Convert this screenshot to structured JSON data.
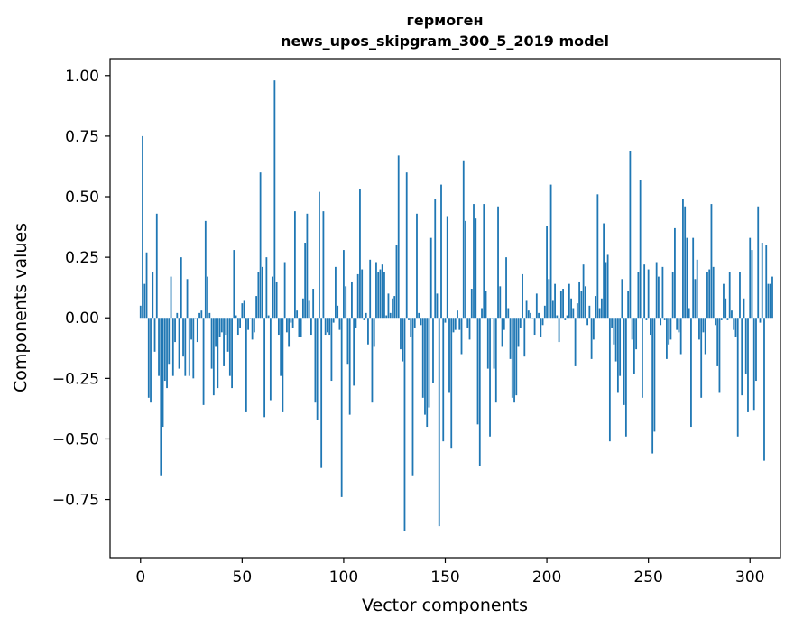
{
  "chart_data": {
    "type": "bar",
    "title": "гермоген",
    "subtitle": "news_upos_skipgram_300_5_2019 model",
    "xlabel": "Vector components",
    "ylabel": "Components values",
    "xlim": [
      -15,
      315
    ],
    "ylim": [
      -0.99,
      1.07
    ],
    "xticks": [
      0,
      50,
      100,
      150,
      200,
      250,
      300
    ],
    "yticks": [
      -0.75,
      -0.5,
      -0.25,
      0.0,
      0.25,
      0.5,
      0.75,
      1.0
    ],
    "ytick_labels": [
      "−0.75",
      "−0.50",
      "−0.25",
      "0.00",
      "0.25",
      "0.50",
      "0.75",
      "1.00"
    ],
    "grid": false,
    "color": "#1f77b4",
    "values": [
      0.05,
      0.75,
      0.14,
      0.27,
      -0.33,
      -0.35,
      0.19,
      -0.14,
      0.43,
      -0.24,
      -0.65,
      -0.45,
      -0.26,
      -0.29,
      -0.19,
      0.17,
      -0.24,
      -0.1,
      0.02,
      -0.21,
      0.25,
      -0.16,
      -0.24,
      0.16,
      -0.24,
      -0.09,
      -0.25,
      0.0,
      -0.1,
      0.02,
      0.03,
      -0.36,
      0.4,
      0.17,
      0.02,
      -0.21,
      -0.32,
      -0.12,
      -0.29,
      -0.08,
      -0.06,
      -0.2,
      -0.07,
      -0.14,
      -0.24,
      -0.29,
      0.28,
      0.01,
      -0.07,
      -0.04,
      0.06,
      0.07,
      -0.39,
      -0.05,
      0.0,
      -0.09,
      -0.06,
      0.09,
      0.19,
      0.6,
      0.21,
      -0.41,
      0.25,
      0.01,
      -0.34,
      0.17,
      0.98,
      0.15,
      -0.07,
      -0.24,
      -0.39,
      0.23,
      -0.06,
      -0.12,
      -0.02,
      -0.04,
      0.44,
      0.03,
      -0.08,
      -0.08,
      0.08,
      0.31,
      0.43,
      0.07,
      -0.07,
      0.12,
      -0.35,
      -0.42,
      0.52,
      -0.62,
      0.44,
      -0.07,
      -0.06,
      -0.07,
      -0.26,
      -0.02,
      0.21,
      0.05,
      -0.05,
      -0.74,
      0.28,
      0.13,
      -0.19,
      -0.4,
      0.15,
      -0.28,
      -0.04,
      0.18,
      0.53,
      0.2,
      -0.01,
      0.02,
      -0.11,
      0.24,
      -0.35,
      -0.12,
      0.23,
      0.19,
      0.2,
      0.22,
      0.19,
      0.01,
      0.1,
      0.02,
      0.08,
      0.09,
      0.3,
      0.67,
      -0.13,
      -0.18,
      -0.88,
      0.6,
      -0.01,
      -0.08,
      -0.65,
      -0.04,
      0.43,
      0.02,
      -0.03,
      -0.33,
      -0.4,
      -0.45,
      -0.37,
      0.33,
      -0.27,
      0.49,
      0.1,
      -0.86,
      0.55,
      -0.51,
      -0.02,
      0.42,
      -0.31,
      -0.54,
      -0.06,
      -0.05,
      0.03,
      -0.05,
      -0.15,
      0.65,
      0.4,
      -0.04,
      -0.09,
      0.12,
      0.47,
      0.41,
      -0.44,
      -0.61,
      0.04,
      0.47,
      0.11,
      -0.21,
      -0.49,
      0.0,
      -0.21,
      -0.35,
      0.46,
      0.13,
      -0.12,
      -0.05,
      0.25,
      0.04,
      -0.17,
      -0.33,
      -0.35,
      -0.32,
      -0.12,
      -0.04,
      0.18,
      -0.16,
      0.07,
      0.03,
      0.02,
      0.0,
      -0.07,
      0.1,
      0.02,
      -0.08,
      -0.03,
      0.05,
      0.38,
      0.16,
      0.55,
      0.07,
      0.14,
      0.01,
      -0.1,
      0.11,
      0.12,
      -0.01,
      0.01,
      0.14,
      0.08,
      0.04,
      -0.2,
      0.06,
      0.15,
      0.11,
      0.22,
      0.13,
      -0.03,
      0.05,
      -0.17,
      -0.09,
      0.09,
      0.51,
      0.04,
      0.08,
      0.39,
      0.23,
      0.26,
      -0.51,
      -0.04,
      -0.11,
      -0.18,
      -0.31,
      -0.24,
      0.16,
      -0.36,
      -0.49,
      0.11,
      0.69,
      -0.09,
      -0.23,
      -0.13,
      0.19,
      0.57,
      -0.33,
      0.22,
      -0.01,
      0.2,
      -0.07,
      -0.56,
      -0.47,
      0.23,
      0.17,
      -0.03,
      0.21,
      -0.01,
      -0.17,
      -0.11,
      -0.09,
      0.19,
      0.37,
      -0.05,
      -0.06,
      -0.15,
      0.49,
      0.46,
      0.33,
      0.04,
      -0.45,
      0.33,
      0.16,
      0.24,
      -0.09,
      -0.33,
      -0.06,
      -0.15,
      0.19,
      0.2,
      0.47,
      0.21,
      -0.03,
      -0.2,
      -0.31,
      -0.01,
      0.14,
      0.08,
      -0.01,
      0.19,
      0.03,
      -0.05,
      -0.08,
      -0.49,
      0.19,
      -0.32,
      0.08,
      -0.23,
      -0.39,
      0.33,
      0.28,
      -0.38,
      -0.26,
      0.46,
      -0.02,
      0.31,
      -0.59,
      0.3,
      0.14,
      0.14,
      0.17
    ]
  }
}
